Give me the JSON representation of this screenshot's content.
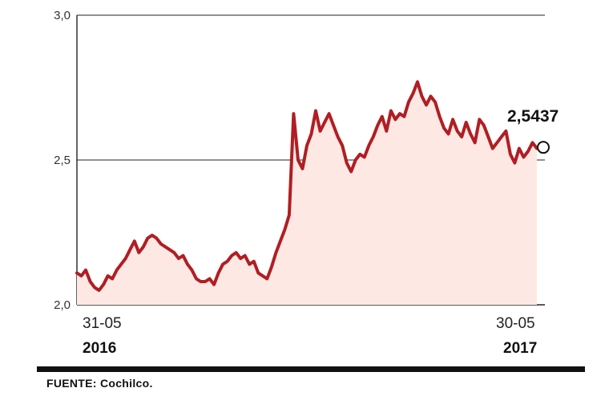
{
  "chart_data": {
    "type": "area",
    "y_ticks": [
      "3,0",
      "2,5",
      "2,0"
    ],
    "ylim": [
      2.0,
      3.0
    ],
    "x_start_label": "31-05",
    "x_start_year": "2016",
    "x_end_label": "30-05",
    "x_end_year": "2017",
    "last_value_label": "2,5437",
    "grid": true,
    "colors": {
      "line": "#b01e23",
      "fill": "#fde8e4",
      "grid": "#222222"
    },
    "values": [
      2.11,
      2.1,
      2.12,
      2.08,
      2.06,
      2.05,
      2.07,
      2.1,
      2.09,
      2.12,
      2.14,
      2.16,
      2.19,
      2.22,
      2.18,
      2.2,
      2.23,
      2.24,
      2.23,
      2.21,
      2.2,
      2.19,
      2.18,
      2.16,
      2.17,
      2.14,
      2.12,
      2.09,
      2.08,
      2.08,
      2.09,
      2.07,
      2.11,
      2.14,
      2.15,
      2.17,
      2.18,
      2.16,
      2.17,
      2.14,
      2.15,
      2.11,
      2.1,
      2.09,
      2.13,
      2.18,
      2.22,
      2.26,
      2.31,
      2.66,
      2.5,
      2.47,
      2.55,
      2.59,
      2.67,
      2.6,
      2.63,
      2.66,
      2.62,
      2.58,
      2.55,
      2.49,
      2.46,
      2.5,
      2.52,
      2.51,
      2.55,
      2.58,
      2.62,
      2.65,
      2.6,
      2.67,
      2.64,
      2.66,
      2.65,
      2.7,
      2.73,
      2.77,
      2.72,
      2.69,
      2.72,
      2.7,
      2.65,
      2.61,
      2.59,
      2.64,
      2.6,
      2.58,
      2.63,
      2.59,
      2.56,
      2.64,
      2.62,
      2.58,
      2.54,
      2.56,
      2.58,
      2.6,
      2.52,
      2.49,
      2.54,
      2.51,
      2.53,
      2.56,
      2.54
    ]
  },
  "source": {
    "text": "FUENTE: Cochilco."
  }
}
